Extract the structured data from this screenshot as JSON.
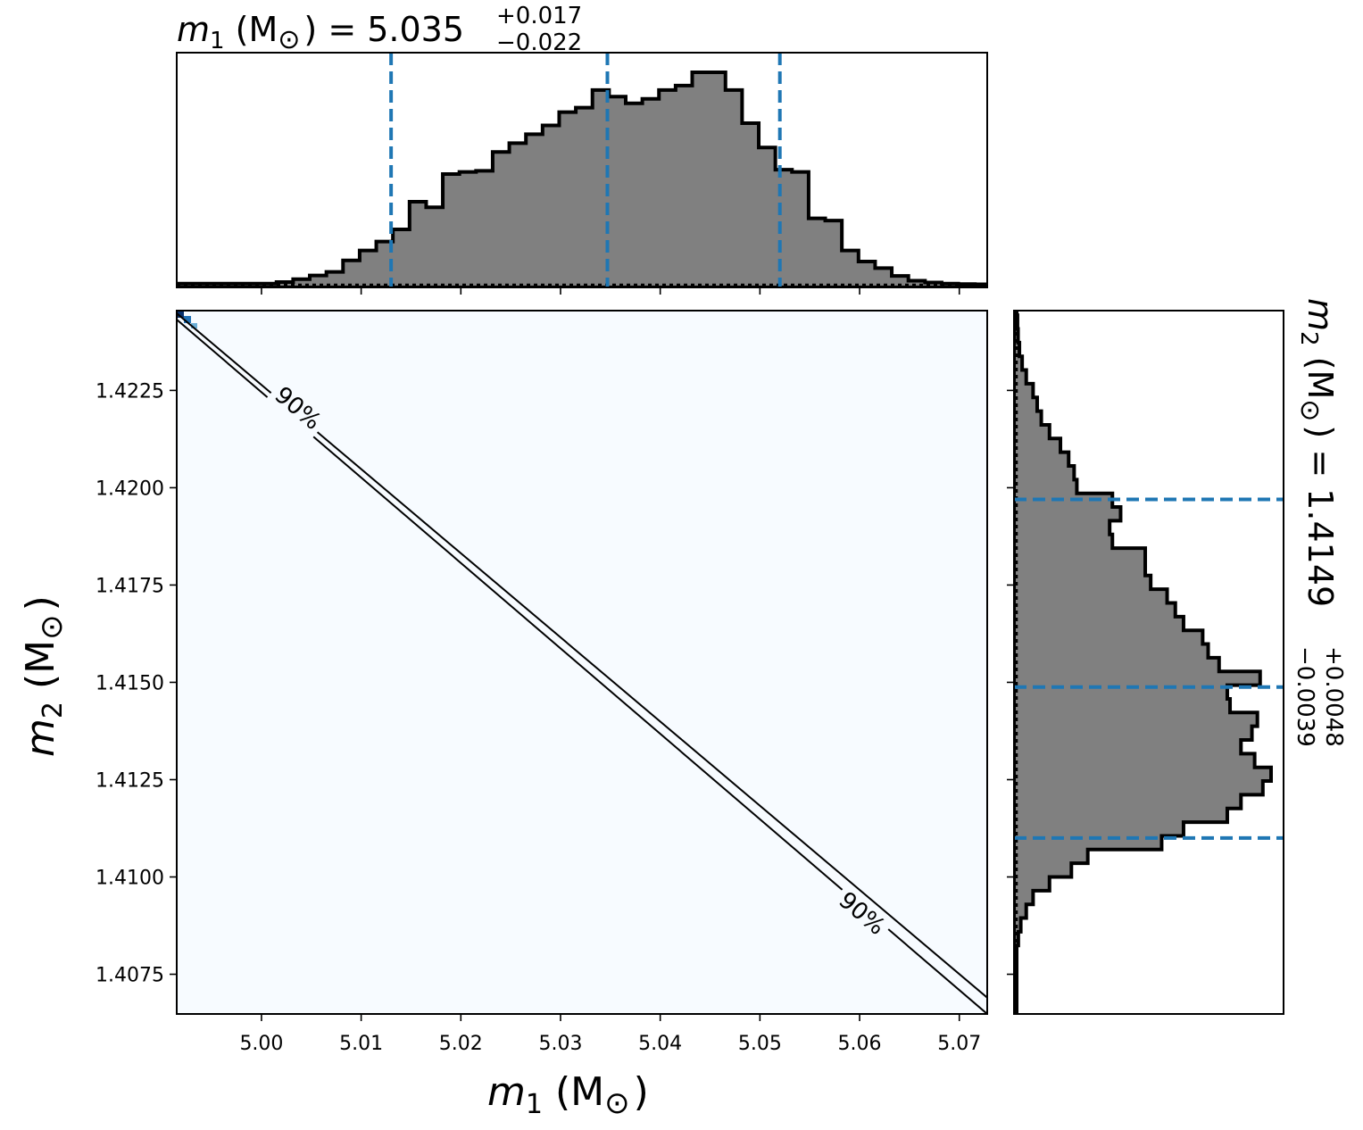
{
  "chart_data": {
    "type": "corner",
    "title": {
      "text_var": "m",
      "text_sub": "1",
      "text_unit": " (M",
      "text_sun": "⊙",
      "text_close": ")",
      "text_eq": " = 5.035",
      "text_plus": "+0.017",
      "text_minus": "−0.022"
    },
    "right_title": {
      "text_var": "m",
      "text_sub": "2",
      "text_unit": " (M",
      "text_sun": "⊙",
      "text_close": ")",
      "text_eq": " = 1.4149",
      "text_plus": "+0.0048",
      "text_minus": "−0.0039"
    },
    "xlabel": {
      "var": "m",
      "sub": "1",
      "unit": " (M",
      "sun": "⊙",
      "close": ")"
    },
    "ylabel": {
      "var": "m",
      "sub": "2",
      "unit": " (M",
      "sun": "⊙",
      "close": ")"
    },
    "xlim": [
      4.9915,
      5.0728
    ],
    "ylim": [
      1.40648,
      1.42455
    ],
    "xticks": [
      5.0,
      5.01,
      5.02,
      5.03,
      5.04,
      5.05,
      5.06,
      5.07
    ],
    "xtick_labels": [
      "5.00",
      "5.01",
      "5.02",
      "5.03",
      "5.04",
      "5.05",
      "5.06",
      "5.07"
    ],
    "yticks": [
      1.4075,
      1.41,
      1.4125,
      1.415,
      1.4175,
      1.42,
      1.4225
    ],
    "ytick_labels": [
      "1.4075",
      "1.4100",
      "1.4125",
      "1.4150",
      "1.4175",
      "1.4200",
      "1.4225"
    ],
    "m1_histogram": {
      "bin_edges_start": 4.9915,
      "bin_width": 0.001668,
      "counts": [
        0.005,
        0.005,
        0.005,
        0.005,
        0.005,
        0.005,
        0.012,
        0.025,
        0.042,
        0.058,
        0.11,
        0.155,
        0.195,
        0.25,
        0.375,
        0.35,
        0.5,
        0.51,
        0.515,
        0.6,
        0.64,
        0.68,
        0.72,
        0.78,
        0.8,
        0.88,
        0.85,
        0.82,
        0.84,
        0.88,
        0.9,
        0.96,
        0.96,
        0.88,
        0.73,
        0.62,
        0.52,
        0.51,
        0.3,
        0.29,
        0.155,
        0.105,
        0.075,
        0.04,
        0.018,
        0.01,
        0.005,
        0.003,
        0.002
      ],
      "quantile_lines": [
        5.013,
        5.0347,
        5.052
      ],
      "color": "#808080",
      "edge_color": "#000000",
      "line_color": "#1f77b4"
    },
    "m2_histogram": {
      "bin_edges_start": 1.40648,
      "bin_width": 0.000352,
      "counts": [
        0.0,
        0.0,
        0.0,
        0.0,
        0.0,
        0.006,
        0.015,
        0.035,
        0.06,
        0.12,
        0.2,
        0.26,
        0.53,
        0.61,
        0.77,
        0.82,
        0.9,
        0.93,
        0.87,
        0.82,
        0.86,
        0.88,
        0.78,
        0.77,
        0.89,
        0.74,
        0.7,
        0.68,
        0.61,
        0.58,
        0.55,
        0.49,
        0.47,
        0.47,
        0.35,
        0.34,
        0.38,
        0.35,
        0.22,
        0.21,
        0.19,
        0.16,
        0.12,
        0.09,
        0.075,
        0.06,
        0.035,
        0.02,
        0.01,
        0.005,
        0.003,
        0.0
      ],
      "quantile_lines": [
        1.411,
        1.41488,
        1.4197
      ],
      "color": "#808080",
      "edge_color": "#000000",
      "line_color": "#1f77b4"
    },
    "contour": {
      "label": "90%",
      "line1": [
        [
          4.9915,
          1.42448
        ],
        [
          5.0728,
          1.4069
        ]
      ],
      "line2": [
        [
          4.9915,
          1.42432
        ],
        [
          5.0728,
          1.40648
        ]
      ],
      "background_color": "#f7fbff",
      "corner_color": "#08306b"
    }
  }
}
